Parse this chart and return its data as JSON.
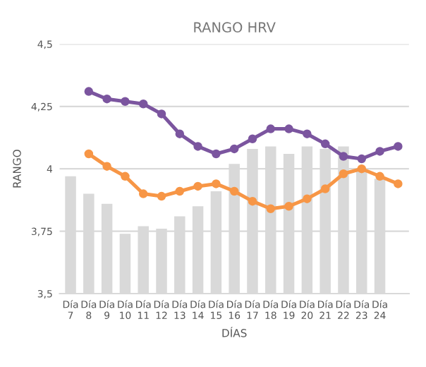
{
  "chart_data": {
    "type": "bar",
    "title": "RANGO HRV",
    "xlabel": "DÍAS",
    "ylabel": "RANGO",
    "categories": [
      "Día\n7",
      "Día\n8",
      "Día\n9",
      "Día\n10",
      "Día\n11",
      "Día\n12",
      "Día\n13",
      "Día\n14",
      "Día\n15",
      "Día\n16",
      "Día\n17",
      "Día\n18",
      "Día\n19",
      "Día\n20",
      "Día\n21",
      "Día\n22",
      "Día\n23",
      "Día\n24",
      null
    ],
    "series": [
      {
        "color": "#d9d9d9",
        "values": [
          3.97,
          3.9,
          3.86,
          3.74,
          3.77,
          3.76,
          3.81,
          3.85,
          3.91,
          4.02,
          4.08,
          4.09,
          4.06,
          4.09,
          4.08,
          4.09,
          4.0,
          3.96,
          null
        ]
      },
      {
        "type": "line",
        "color": "#7b559f",
        "marker": "circle",
        "values": [
          null,
          4.31,
          4.28,
          4.27,
          4.26,
          4.22,
          4.14,
          4.09,
          4.06,
          4.08,
          4.12,
          4.16,
          4.16,
          4.14,
          4.1,
          4.05,
          4.04,
          4.07,
          4.09
        ]
      },
      {
        "type": "line",
        "color": "#f79646",
        "marker": "circle",
        "values": [
          null,
          4.06,
          4.01,
          3.97,
          3.9,
          3.89,
          3.91,
          3.93,
          3.94,
          3.91,
          3.87,
          3.84,
          3.85,
          3.88,
          3.92,
          3.98,
          4.0,
          3.97,
          3.94
        ]
      }
    ],
    "ylim": [
      3.5,
      4.5
    ],
    "yticks": [
      {
        "value": 3.5,
        "label": "3,5"
      },
      {
        "value": 3.75,
        "label": "3,75"
      },
      {
        "value": 4,
        "label": "4"
      },
      {
        "value": 4.25,
        "label": "4,25"
      },
      {
        "value": 4.5,
        "label": "4,5"
      }
    ],
    "grid": "y",
    "legend": false
  }
}
